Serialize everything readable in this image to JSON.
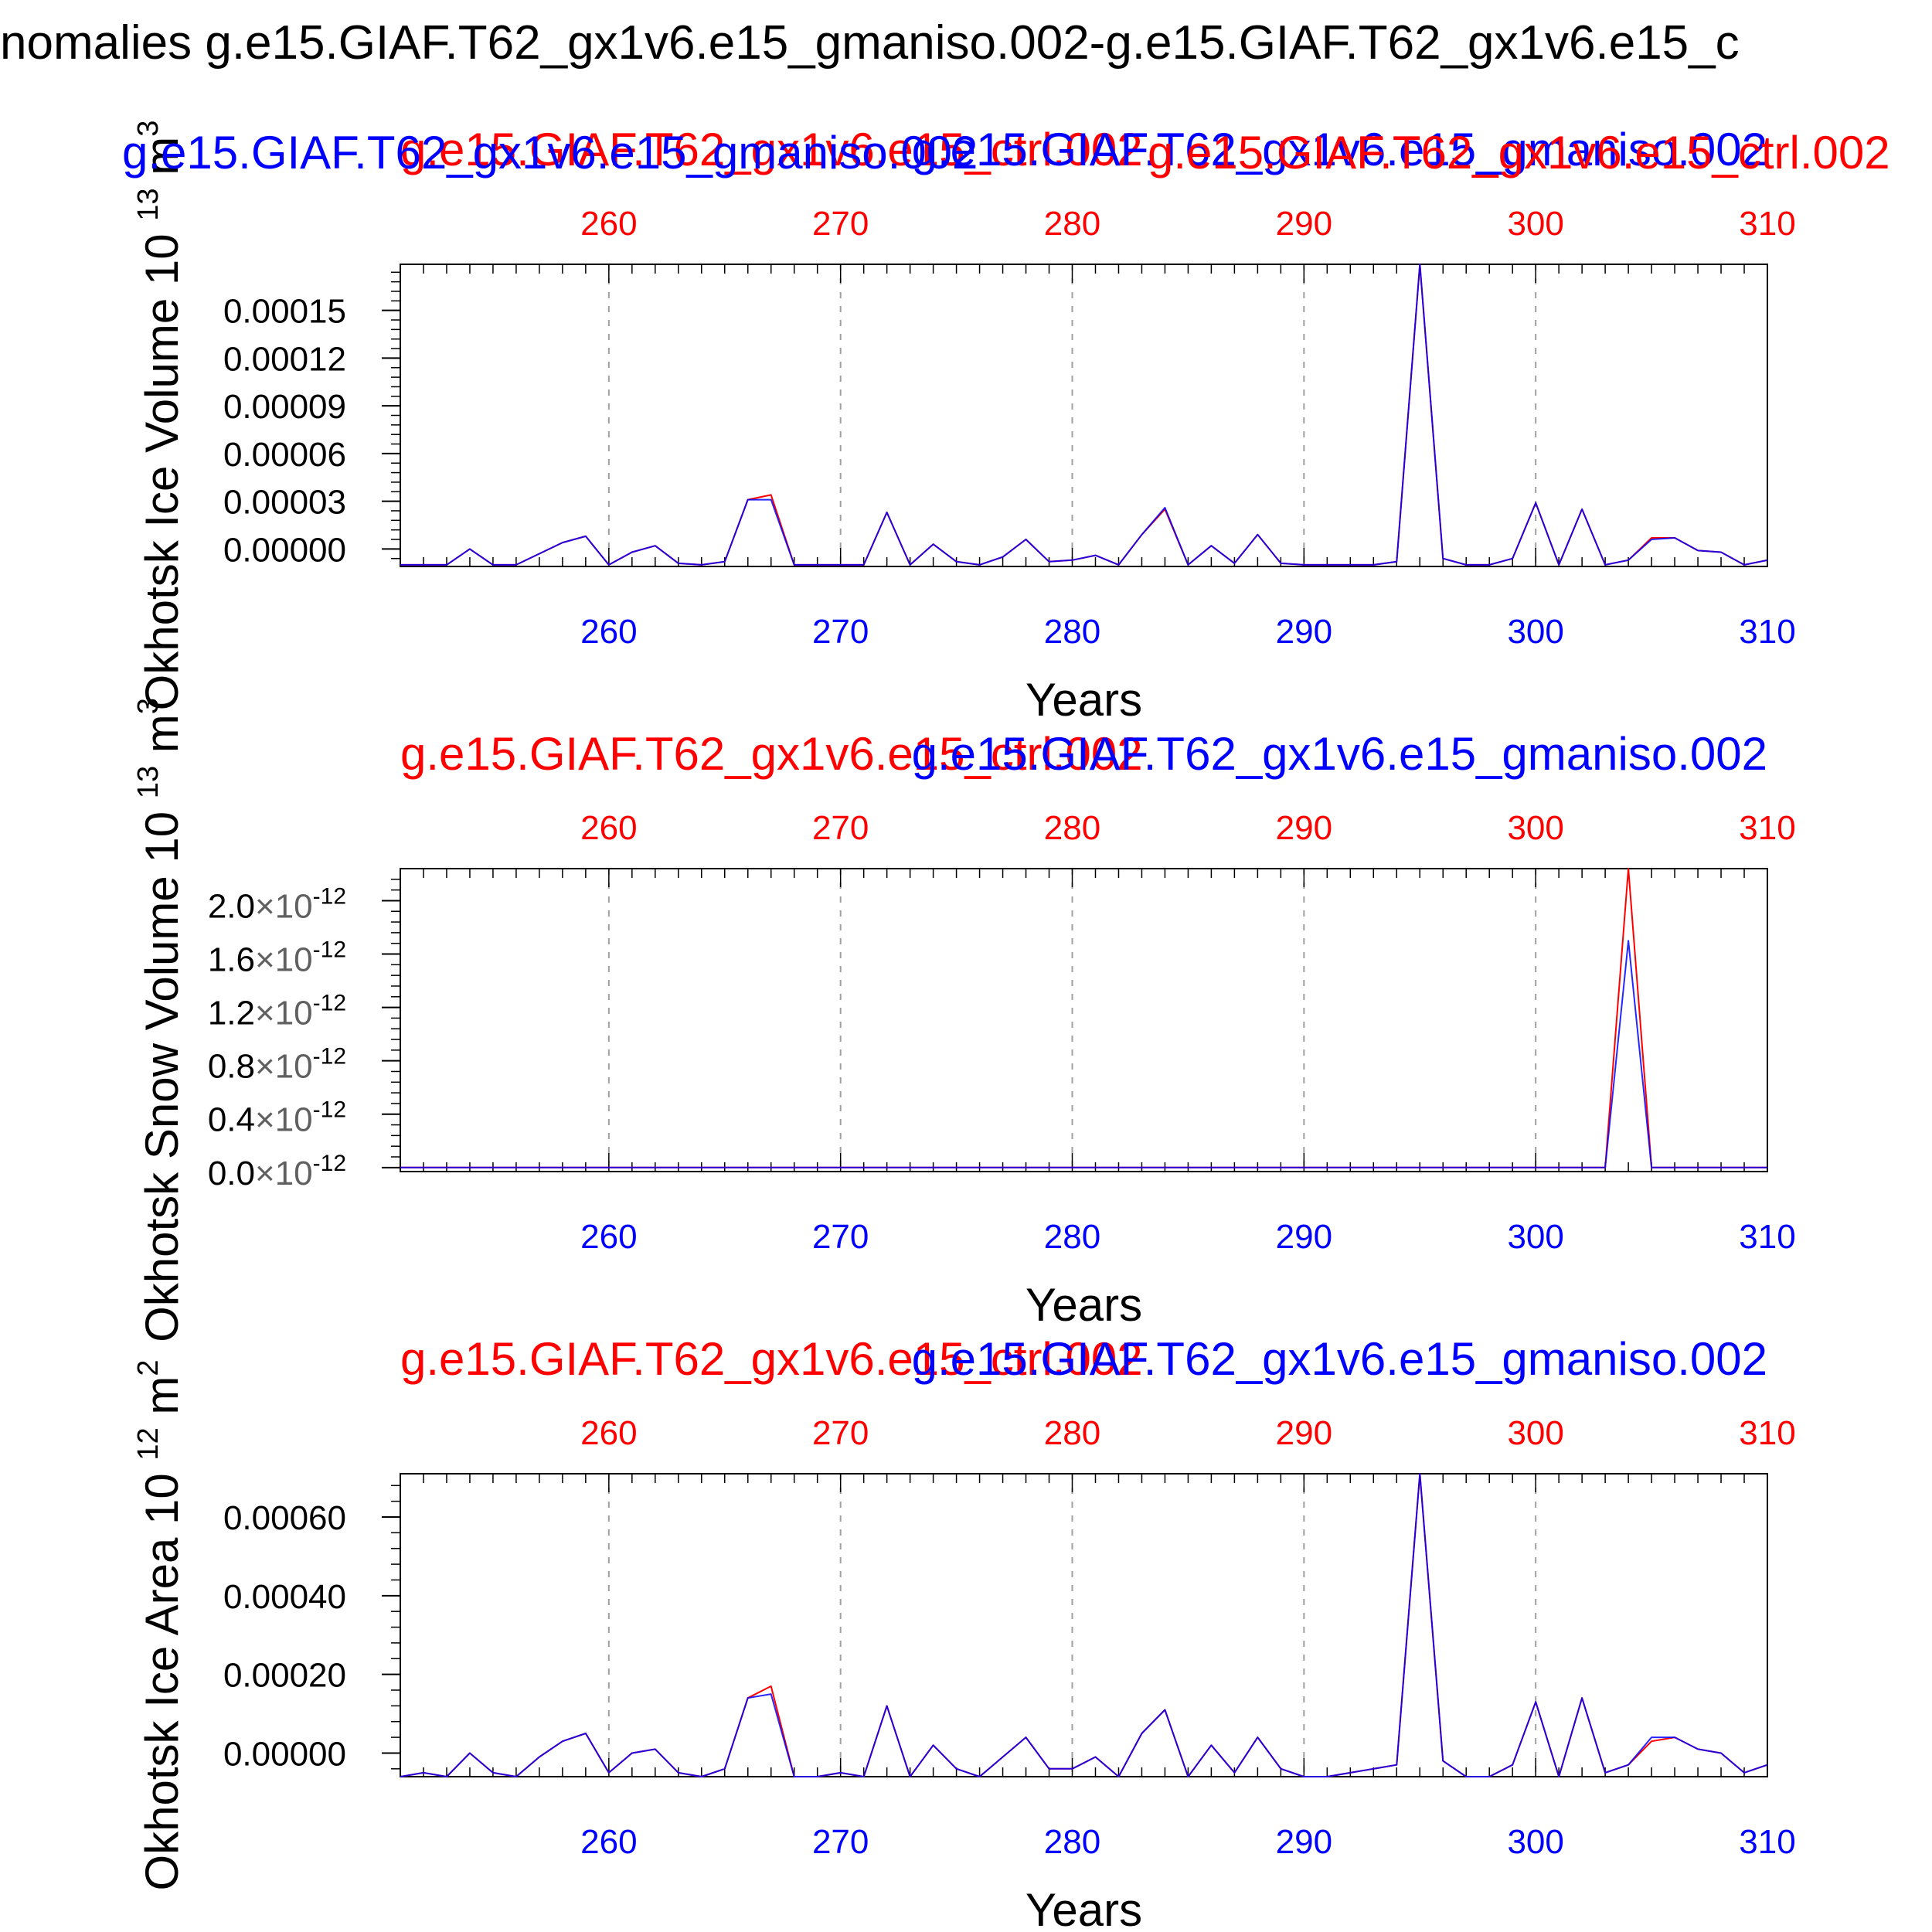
{
  "main_title": "nomalies g.e15.GIAF.T62_gx1v6.e15_gmaniso.002-g.e15.GIAF.T62_gx1v6.e15_c",
  "colors": {
    "ctrl": "#ff0000",
    "aniso": "#0000ff",
    "overlap": "#800040",
    "axis": "#000000",
    "grid": "#a0a0a0"
  },
  "chart_data": [
    {
      "type": "line",
      "title": "",
      "legend": {
        "placement": "top",
        "entries": [
          "g.e15.GIAF.T62_gx1v6.e15_ctrl.002",
          "g.e15.GIAF.T62_gx1v6.e15_gmaniso.002"
        ]
      },
      "corner_labels": {
        "left": "g.e15.GIAF.T62_gx1v6.e15_gmaniso.002",
        "right": "g.e15.GIAF.T62_gx1v6.e15_ctrl.002"
      },
      "ylabel": "Okhotsk Ice Volume 10",
      "ylabel_exp": "13",
      "ylabel_unit": "m",
      "ylabel_unit_exp": "3",
      "xlabel": "Years",
      "xlim": [
        251,
        310
      ],
      "ylim": [
        -1.1e-05,
        0.000179
      ],
      "x_ticks": [
        "260",
        "270",
        "280",
        "290",
        "300",
        "310"
      ],
      "y_ticks": [
        "0.00000",
        "0.00003",
        "0.00006",
        "0.00009",
        "0.00012",
        "0.00015"
      ],
      "grid": true,
      "x": [
        251,
        252,
        253,
        254,
        255,
        256,
        257,
        258,
        259,
        260,
        261,
        262,
        263,
        264,
        265,
        266,
        267,
        268,
        269,
        270,
        271,
        272,
        273,
        274,
        275,
        276,
        277,
        278,
        279,
        280,
        281,
        282,
        283,
        284,
        285,
        286,
        287,
        288,
        289,
        290,
        291,
        292,
        293,
        294,
        295,
        296,
        297,
        298,
        299,
        300,
        301,
        302,
        303,
        304,
        305,
        306,
        307,
        308,
        309,
        310
      ],
      "series": [
        {
          "name": "g.e15.GIAF.T62_gx1v6.e15_ctrl.002",
          "color": "#ff0000",
          "values": [
            -1e-05,
            -1e-05,
            -1e-05,
            0,
            -1e-05,
            -1e-05,
            -3e-06,
            4e-06,
            8e-06,
            -1e-05,
            -2e-06,
            2e-06,
            -9e-06,
            -1e-05,
            -8e-06,
            3.1e-05,
            3.4e-05,
            -1e-05,
            -1e-05,
            -1e-05,
            -1e-05,
            2.3e-05,
            -1e-05,
            3e-06,
            -8e-06,
            -1e-05,
            -5e-06,
            6e-06,
            -8e-06,
            -7e-06,
            -4e-06,
            -1e-05,
            9e-06,
            2.5e-05,
            -1e-05,
            2e-06,
            -9e-06,
            9e-06,
            -9e-06,
            -1e-05,
            -1e-05,
            -1e-05,
            -1e-05,
            -8e-06,
            0.000179,
            -6e-06,
            -1e-05,
            -1e-05,
            -6e-06,
            2.9e-05,
            -1e-05,
            2.5e-05,
            -1e-05,
            -7e-06,
            7e-06,
            7e-06,
            -1e-06,
            -2e-06,
            -1e-05,
            -7e-06
          ]
        },
        {
          "name": "g.e15.GIAF.T62_gx1v6.e15_gmaniso.002",
          "color": "#0000ff",
          "values": [
            -1e-05,
            -1e-05,
            -1e-05,
            0,
            -1e-05,
            -1e-05,
            -3e-06,
            4e-06,
            8e-06,
            -1e-05,
            -2e-06,
            2e-06,
            -9e-06,
            -1e-05,
            -8e-06,
            3.1e-05,
            3.1e-05,
            -1e-05,
            -1e-05,
            -1e-05,
            -1e-05,
            2.3e-05,
            -1e-05,
            3e-06,
            -8e-06,
            -1e-05,
            -5e-06,
            6e-06,
            -8e-06,
            -7e-06,
            -4e-06,
            -1e-05,
            9e-06,
            2.6e-05,
            -1e-05,
            2e-06,
            -9e-06,
            9e-06,
            -9e-06,
            -1e-05,
            -1e-05,
            -1e-05,
            -1e-05,
            -8e-06,
            0.000179,
            -6e-06,
            -1e-05,
            -1e-05,
            -6e-06,
            2.9e-05,
            -1e-05,
            2.5e-05,
            -1e-05,
            -7e-06,
            6e-06,
            7e-06,
            -1e-06,
            -2e-06,
            -1e-05,
            -7e-06
          ]
        }
      ]
    },
    {
      "type": "line",
      "title": "",
      "legend": {
        "placement": "top",
        "entries": [
          "g.e15.GIAF.T62_gx1v6.e15_ctrl.002",
          "g.e15.GIAF.T62_gx1v6.e15_gmaniso.002"
        ]
      },
      "ylabel": "Okhotsk Snow Volume 10",
      "ylabel_exp": "13",
      "ylabel_unit": "m",
      "ylabel_unit_exp": "3",
      "xlabel": "Years",
      "xlim": [
        251,
        310
      ],
      "ylim": [
        -3e-14,
        2.24e-12
      ],
      "x_ticks": [
        "260",
        "270",
        "280",
        "290",
        "300",
        "310"
      ],
      "y_ticks": [
        {
          "mantissa": "0.0",
          "exp": "-12"
        },
        {
          "mantissa": "0.4",
          "exp": "-12"
        },
        {
          "mantissa": "0.8",
          "exp": "-12"
        },
        {
          "mantissa": "1.2",
          "exp": "-12"
        },
        {
          "mantissa": "1.6",
          "exp": "-12"
        },
        {
          "mantissa": "2.0",
          "exp": "-12"
        }
      ],
      "y_tick_sep": "×10",
      "grid": true,
      "x": [
        251,
        252,
        253,
        254,
        255,
        256,
        257,
        258,
        259,
        260,
        261,
        262,
        263,
        264,
        265,
        266,
        267,
        268,
        269,
        270,
        271,
        272,
        273,
        274,
        275,
        276,
        277,
        278,
        279,
        280,
        281,
        282,
        283,
        284,
        285,
        286,
        287,
        288,
        289,
        290,
        291,
        292,
        293,
        294,
        295,
        296,
        297,
        298,
        299,
        300,
        301,
        302,
        303,
        304,
        305,
        306,
        307,
        308,
        309,
        310
      ],
      "series": [
        {
          "name": "g.e15.GIAF.T62_gx1v6.e15_ctrl.002",
          "color": "#ff0000",
          "values": [
            0,
            0,
            0,
            0,
            0,
            0,
            0,
            0,
            0,
            0,
            0,
            0,
            0,
            0,
            0,
            0,
            0,
            0,
            0,
            0,
            0,
            0,
            0,
            0,
            0,
            0,
            0,
            0,
            0,
            0,
            0,
            0,
            0,
            0,
            0,
            0,
            0,
            0,
            0,
            0,
            0,
            0,
            0,
            0,
            0,
            0,
            0,
            0,
            0,
            0,
            0,
            0,
            0,
            2.24e-12,
            0,
            0,
            0,
            0,
            0,
            0
          ]
        },
        {
          "name": "g.e15.GIAF.T62_gx1v6.e15_gmaniso.002",
          "color": "#0000ff",
          "values": [
            0,
            0,
            0,
            0,
            0,
            0,
            0,
            0,
            0,
            0,
            0,
            0,
            0,
            0,
            0,
            0,
            0,
            0,
            0,
            0,
            0,
            0,
            0,
            0,
            0,
            0,
            0,
            0,
            0,
            0,
            0,
            0,
            0,
            0,
            0,
            0,
            0,
            0,
            0,
            0,
            0,
            0,
            0,
            0,
            0,
            0,
            0,
            0,
            0,
            0,
            0,
            0,
            0,
            1.7e-12,
            0,
            0,
            0,
            0,
            0,
            0
          ]
        }
      ]
    },
    {
      "type": "line",
      "title": "",
      "legend": {
        "placement": "top",
        "entries": [
          "g.e15.GIAF.T62_gx1v6.e15_ctrl.002",
          "g.e15.GIAF.T62_gx1v6.e15_gmaniso.002"
        ]
      },
      "ylabel": "Okhotsk Ice Area 10",
      "ylabel_exp": "12",
      "ylabel_unit": "m",
      "ylabel_unit_exp": "2",
      "xlabel": "Years",
      "xlim": [
        251,
        310
      ],
      "ylim": [
        -6e-05,
        0.00071
      ],
      "x_ticks": [
        "260",
        "270",
        "280",
        "290",
        "300",
        "310"
      ],
      "y_ticks": [
        "0.00000",
        "0.00020",
        "0.00040",
        "0.00060"
      ],
      "grid": true,
      "x": [
        251,
        252,
        253,
        254,
        255,
        256,
        257,
        258,
        259,
        260,
        261,
        262,
        263,
        264,
        265,
        266,
        267,
        268,
        269,
        270,
        271,
        272,
        273,
        274,
        275,
        276,
        277,
        278,
        279,
        280,
        281,
        282,
        283,
        284,
        285,
        286,
        287,
        288,
        289,
        290,
        291,
        292,
        293,
        294,
        295,
        296,
        297,
        298,
        299,
        300,
        301,
        302,
        303,
        304,
        305,
        306,
        307,
        308,
        309,
        310
      ],
      "series": [
        {
          "name": "g.e15.GIAF.T62_gx1v6.e15_ctrl.002",
          "color": "#ff0000",
          "values": [
            -6e-05,
            -5e-05,
            -6e-05,
            0,
            -5e-05,
            -6e-05,
            -1e-05,
            3e-05,
            5e-05,
            -5e-05,
            0,
            1e-05,
            -5e-05,
            -6e-05,
            -4e-05,
            0.00014,
            0.00017,
            -6e-05,
            -6e-05,
            -5e-05,
            -6e-05,
            0.00012,
            -6e-05,
            2e-05,
            -4e-05,
            -6e-05,
            -1e-05,
            4e-05,
            -4e-05,
            -4e-05,
            -1e-05,
            -6e-05,
            5e-05,
            0.00011,
            -6e-05,
            2e-05,
            -5e-05,
            4e-05,
            -4e-05,
            -6e-05,
            -6e-05,
            -5e-05,
            -4e-05,
            -3e-05,
            0.00071,
            -2e-05,
            -6e-05,
            -6e-05,
            -3e-05,
            0.00013,
            -6e-05,
            0.00014,
            -5e-05,
            -3e-05,
            3e-05,
            4e-05,
            1e-05,
            0,
            -5e-05,
            -3e-05
          ]
        },
        {
          "name": "g.e15.GIAF.T62_gx1v6.e15_gmaniso.002",
          "color": "#0000ff",
          "values": [
            -6e-05,
            -5e-05,
            -6e-05,
            0,
            -5e-05,
            -6e-05,
            -1e-05,
            3e-05,
            5e-05,
            -5e-05,
            0,
            1e-05,
            -5e-05,
            -6e-05,
            -4e-05,
            0.00014,
            0.00015,
            -6e-05,
            -6e-05,
            -5e-05,
            -6e-05,
            0.00012,
            -6e-05,
            2e-05,
            -4e-05,
            -6e-05,
            -1e-05,
            4e-05,
            -4e-05,
            -4e-05,
            -1e-05,
            -6e-05,
            5e-05,
            0.00011,
            -6e-05,
            2e-05,
            -5e-05,
            4e-05,
            -4e-05,
            -6e-05,
            -6e-05,
            -5e-05,
            -4e-05,
            -3e-05,
            0.00071,
            -2e-05,
            -6e-05,
            -6e-05,
            -3e-05,
            0.00013,
            -6e-05,
            0.00014,
            -5e-05,
            -3e-05,
            4e-05,
            4e-05,
            1e-05,
            0,
            -5e-05,
            -3e-05
          ]
        }
      ]
    }
  ]
}
